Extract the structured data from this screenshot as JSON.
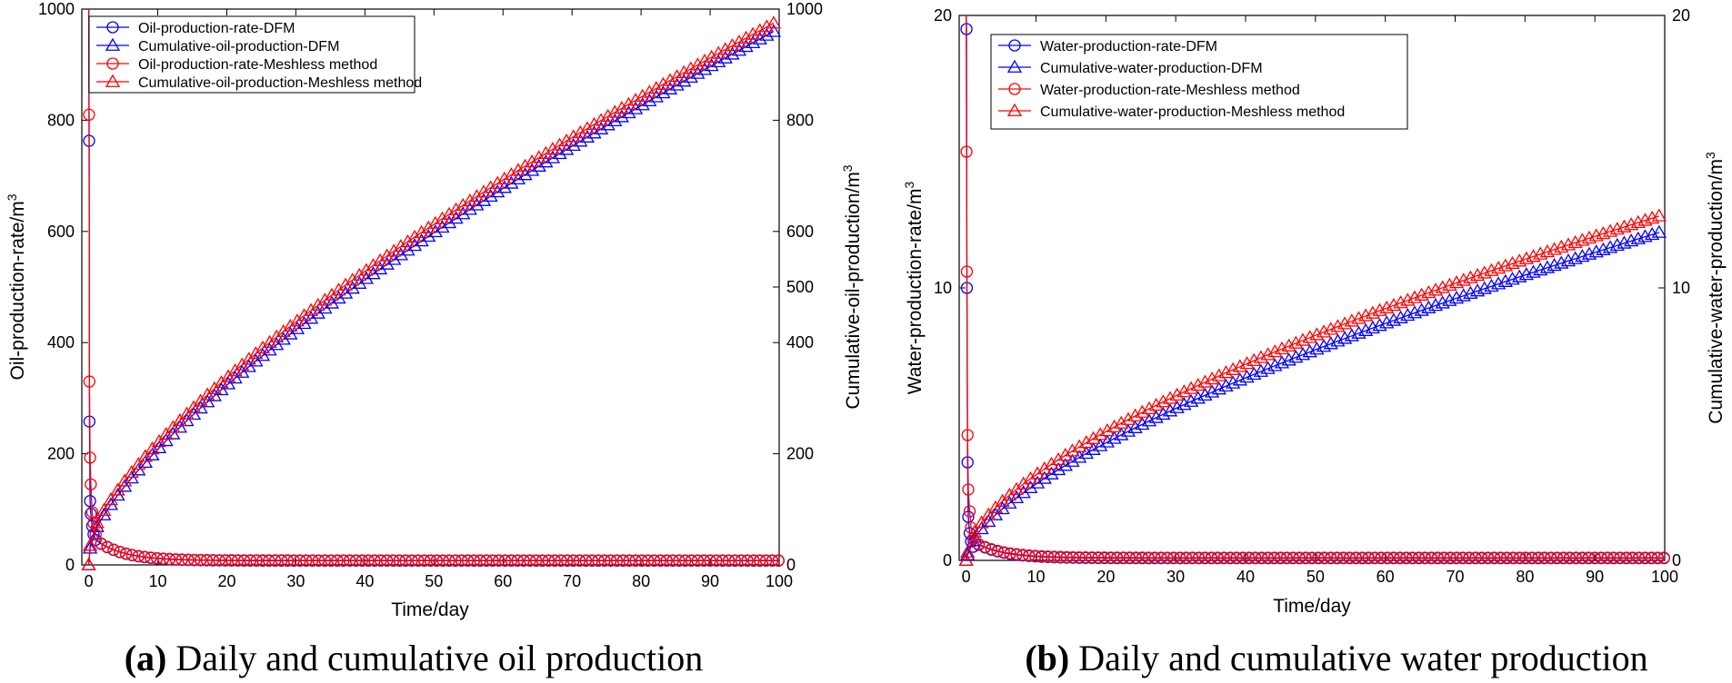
{
  "chart_data": [
    {
      "type": "line",
      "id": "oil",
      "caption": {
        "label": "(a)",
        "text": " Daily and cumulative oil production"
      },
      "xlabel": "Time/day",
      "ylabel_left": "Oil-production-rate/m",
      "ylabel_right": "Cumulative-oil-production/m",
      "ylabel_sup": "3",
      "xlim": [
        -1,
        100
      ],
      "ylim_left": [
        0,
        1000
      ],
      "ylim_right": [
        0,
        1000
      ],
      "xticks": [
        0,
        10,
        20,
        30,
        40,
        50,
        60,
        70,
        80,
        90,
        100
      ],
      "yticks_left": [
        0,
        200,
        400,
        600,
        800,
        1000
      ],
      "yticks_right": [
        0,
        200,
        400,
        500,
        600,
        800,
        1000
      ],
      "rate_model": {
        "spike_times": [
          0,
          0.05,
          0.1,
          0.2,
          0.3,
          0.5,
          0.7,
          1.0
        ],
        "tail_base": 7.6,
        "tail_amp": 37,
        "tail_tau": 4
      },
      "series": [
        {
          "name": "Oil-production-rate-DFM",
          "axis": "left",
          "marker": "circle",
          "color": "#0000ff",
          "spike_values": [
            1000,
            763,
            258,
            115,
            92,
            70,
            55,
            45
          ],
          "tail_base": 7.6
        },
        {
          "name": "Cumulative-oil-production-DFM",
          "axis": "right",
          "marker": "triangle",
          "color": "#0000ff",
          "cum_start_t": 0.2,
          "cum_start_v": 30,
          "cum_end_v": 965,
          "cum_exp": 0.72
        },
        {
          "name": "Oil-production-rate-Meshless method",
          "axis": "left",
          "marker": "circle",
          "color": "#ff0000",
          "spike_values": [
            1000,
            810,
            330,
            193,
            145,
            95,
            75,
            55
          ],
          "tail_base": 8.2
        },
        {
          "name": "Cumulative-oil-production-Meshless method",
          "axis": "right",
          "marker": "triangle",
          "color": "#ff0000",
          "cum_start_t": 0.2,
          "cum_start_v": 35,
          "cum_end_v": 980,
          "cum_exp": 0.71
        }
      ]
    },
    {
      "type": "line",
      "id": "water",
      "caption": {
        "label": "(b)",
        "text": " Daily and cumulative water production"
      },
      "xlabel": "Time/day",
      "ylabel_left": "Water-production-rate/m",
      "ylabel_right": "Cumulative-water-production/m",
      "ylabel_sup": "3",
      "xlim": [
        -1,
        100
      ],
      "ylim_left": [
        0,
        20
      ],
      "ylim_right": [
        0,
        20
      ],
      "xticks": [
        0,
        10,
        20,
        30,
        40,
        50,
        60,
        70,
        80,
        90,
        100
      ],
      "yticks_left": [
        0,
        10,
        20
      ],
      "yticks_right": [
        0,
        10,
        20
      ],
      "rate_model": {
        "spike_times": [
          0,
          0.05,
          0.1,
          0.2,
          0.3,
          0.5,
          0.7,
          1.0
        ],
        "tail_base": 0.08,
        "tail_amp": 0.6,
        "tail_tau": 4
      },
      "series": [
        {
          "name": "Water-production-rate-DFM",
          "axis": "left",
          "marker": "circle",
          "color": "#0000ff",
          "spike_values": [
            20,
            19.5,
            10,
            3.6,
            1.6,
            1.0,
            0.7,
            0.5
          ],
          "tail_base": 0.08
        },
        {
          "name": "Cumulative-water-production-DFM",
          "axis": "right",
          "marker": "triangle",
          "color": "#0000ff",
          "cum_start_t": 0.2,
          "cum_start_v": 0.2,
          "cum_end_v": 12.1,
          "cum_exp": 0.66
        },
        {
          "name": "Water-production-rate-Meshless method",
          "axis": "left",
          "marker": "circle",
          "color": "#ff0000",
          "spike_values": [
            20,
            15,
            10.6,
            4.6,
            2.6,
            1.8,
            1.2,
            0.8
          ],
          "tail_base": 0.1
        },
        {
          "name": "Cumulative-water-production-Meshless method",
          "axis": "right",
          "marker": "triangle",
          "color": "#ff0000",
          "cum_start_t": 0.2,
          "cum_start_v": 0.3,
          "cum_end_v": 12.7,
          "cum_exp": 0.64
        }
      ]
    }
  ]
}
